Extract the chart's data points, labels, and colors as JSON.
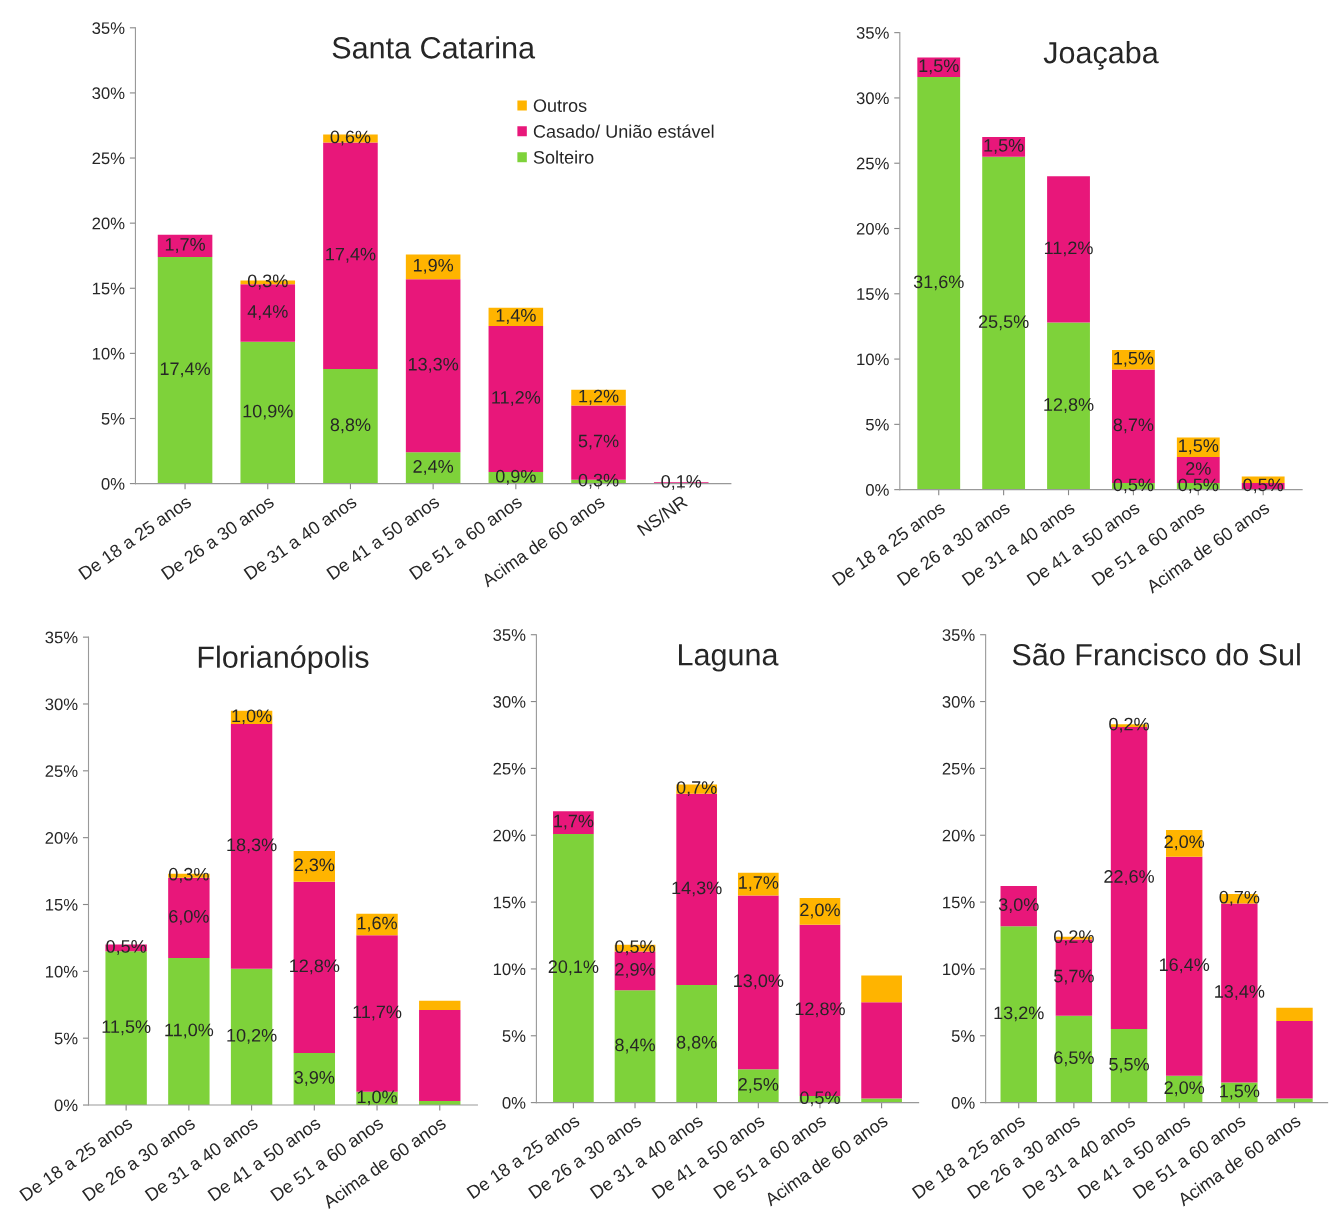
{
  "chart_data": [
    {
      "type": "bar",
      "stacked": true,
      "title": "Santa Catarina",
      "legend": "top right",
      "categories": [
        "De 18 a 25 anos",
        "De 26 a 30 anos",
        "De 31 a 40 anos",
        "De 41 a 50 anos",
        "De 51 a 60 anos",
        "Acima de 60 anos",
        "NS/NR"
      ],
      "ylim": [
        0,
        35
      ],
      "yticks": [
        {
          "value": 0,
          "label": "0%"
        },
        {
          "value": 5,
          "label": "5%"
        },
        {
          "value": 10,
          "label": "10%"
        },
        {
          "value": 15,
          "label": "15%"
        },
        {
          "value": 20,
          "label": "20%"
        },
        {
          "value": 25,
          "label": "25%"
        },
        {
          "value": 30,
          "label": "30%"
        },
        {
          "value": 35,
          "label": "35%"
        }
      ],
      "series": [
        {
          "name": "Solteiro",
          "color": "#7ed23a",
          "values": [
            17.4,
            10.9,
            8.8,
            2.4,
            0.9,
            0.3,
            null
          ],
          "value_labels": [
            "17,4%",
            "10,9%",
            "8,8%",
            "2,4%",
            "0,9%",
            "0,3%",
            null
          ]
        },
        {
          "name": "Casado/ União estável",
          "color": "#e8177a",
          "values": [
            1.7,
            4.4,
            17.4,
            13.3,
            11.2,
            5.7,
            0.1
          ],
          "value_labels": [
            "1,7%",
            "4,4%",
            "17,4%",
            "13,3%",
            "11,2%",
            "5,7%",
            "0,1%"
          ]
        },
        {
          "name": "Outros",
          "color": "#ffb400",
          "values": [
            null,
            0.3,
            0.6,
            1.9,
            1.4,
            1.2,
            null
          ],
          "value_labels": [
            null,
            "0,3%",
            "0,6%",
            "1,9%",
            "1,4%",
            "1,2%",
            null
          ]
        }
      ]
    },
    {
      "type": "bar",
      "stacked": true,
      "title": "Joaçaba",
      "categories": [
        "De 18 a 25 anos",
        "De 26 a 30 anos",
        "De 31 a 40 anos",
        "De 41 a 50 anos",
        "De 51 a 60 anos",
        "Acima de 60 anos"
      ],
      "ylim": [
        0,
        35
      ],
      "yticks": [
        {
          "value": 0,
          "label": "0%"
        },
        {
          "value": 5,
          "label": "5%"
        },
        {
          "value": 10,
          "label": "10%"
        },
        {
          "value": 15,
          "label": "15%"
        },
        {
          "value": 20,
          "label": "20%"
        },
        {
          "value": 25,
          "label": "25%"
        },
        {
          "value": 30,
          "label": "30%"
        },
        {
          "value": 35,
          "label": "35%"
        }
      ],
      "series": [
        {
          "color": "#7ed23a",
          "values": [
            31.6,
            25.5,
            12.8,
            0.5,
            0.5,
            null
          ],
          "value_labels": [
            "31,6%",
            "25,5%",
            "12,8%",
            "0,5%",
            "0,5%",
            null
          ]
        },
        {
          "color": "#e8177a",
          "values": [
            1.5,
            1.5,
            11.2,
            8.7,
            2,
            0.5
          ],
          "value_labels": [
            "1,5%",
            "1,5%",
            "11,2%",
            "8,7%",
            "2%",
            "0,5%"
          ]
        },
        {
          "color": "#ffb400",
          "values": [
            null,
            null,
            null,
            1.5,
            1.5,
            0.5
          ],
          "value_labels": [
            null,
            null,
            null,
            "1,5%",
            "1,5%",
            null
          ]
        }
      ]
    },
    {
      "type": "bar",
      "stacked": true,
      "title": "Florianópolis",
      "categories": [
        "De 18 a 25 anos",
        "De 26 a 30 anos",
        "De 31 a 40 anos",
        "De 41 a 50 anos",
        "De 51 a 60 anos",
        "Acima de 60 anos"
      ],
      "ylim": [
        0,
        35
      ],
      "yticks": [
        {
          "value": 0,
          "label": "0%"
        },
        {
          "value": 5,
          "label": "5%"
        },
        {
          "value": 10,
          "label": "10%"
        },
        {
          "value": 15,
          "label": "15%"
        },
        {
          "value": 20,
          "label": "20%"
        },
        {
          "value": 25,
          "label": "25%"
        },
        {
          "value": 30,
          "label": "30%"
        },
        {
          "value": 35,
          "label": "35%"
        }
      ],
      "series": [
        {
          "color": "#7ed23a",
          "values": [
            11.5,
            11.0,
            10.2,
            3.9,
            1.0,
            0.3
          ],
          "value_labels": [
            "11,5%",
            "11,0%",
            "10,2%",
            "3,9%",
            "1,0%",
            null
          ]
        },
        {
          "color": "#e8177a",
          "values": [
            0.5,
            6.0,
            18.3,
            12.8,
            11.7,
            6.8
          ],
          "value_labels": [
            "0,5%",
            "6,0%",
            "18,3%",
            "12,8%",
            "11,7%",
            null
          ]
        },
        {
          "color": "#ffb400",
          "values": [
            null,
            0.3,
            1.0,
            2.3,
            1.6,
            0.7
          ],
          "value_labels": [
            null,
            "0,3%",
            "1,0%",
            "2,3%",
            "1,6%",
            null
          ]
        }
      ]
    },
    {
      "type": "bar",
      "stacked": true,
      "title": "Laguna",
      "categories": [
        "De 18 a 25 anos",
        "De 26 a 30 anos",
        "De 31 a 40 anos",
        "De 41 a 50 anos",
        "De 51 a 60 anos",
        "Acima de 60 anos"
      ],
      "ylim": [
        0,
        35
      ],
      "yticks": [
        {
          "value": 0,
          "label": "0%"
        },
        {
          "value": 5,
          "label": "5%"
        },
        {
          "value": 10,
          "label": "10%"
        },
        {
          "value": 15,
          "label": "15%"
        },
        {
          "value": 20,
          "label": "20%"
        },
        {
          "value": 25,
          "label": "25%"
        },
        {
          "value": 30,
          "label": "30%"
        },
        {
          "value": 35,
          "label": "35%"
        }
      ],
      "series": [
        {
          "color": "#7ed23a",
          "values": [
            20.1,
            8.4,
            8.8,
            2.5,
            0.5,
            0.3
          ],
          "value_labels": [
            "20,1%",
            "8,4%",
            "8,8%",
            "2,5%",
            "0,5%",
            null
          ]
        },
        {
          "color": "#e8177a",
          "values": [
            1.7,
            2.9,
            14.3,
            13.0,
            12.8,
            7.2
          ],
          "value_labels": [
            "1,7%",
            "2,9%",
            "14,3%",
            "13,0%",
            "12,8%",
            null
          ]
        },
        {
          "color": "#ffb400",
          "values": [
            null,
            0.5,
            0.7,
            1.7,
            2.0,
            2.0
          ],
          "value_labels": [
            null,
            "0,5%",
            "0,7%",
            "1,7%",
            "2,0%",
            null
          ]
        }
      ]
    },
    {
      "type": "bar",
      "stacked": true,
      "title": "São Francisco do Sul",
      "categories": [
        "De 18 a 25 anos",
        "De 26 a 30 anos",
        "De 31 a 40 anos",
        "De 41 a 50 anos",
        "De 51 a 60 anos",
        "Acima de 60 anos"
      ],
      "ylim": [
        0,
        35
      ],
      "yticks": [
        {
          "value": 0,
          "label": "0%"
        },
        {
          "value": 5,
          "label": "5%"
        },
        {
          "value": 10,
          "label": "10%"
        },
        {
          "value": 15,
          "label": "15%"
        },
        {
          "value": 20,
          "label": "20%"
        },
        {
          "value": 25,
          "label": "25%"
        },
        {
          "value": 30,
          "label": "30%"
        },
        {
          "value": 35,
          "label": "35%"
        }
      ],
      "series": [
        {
          "color": "#7ed23a",
          "values": [
            13.2,
            6.5,
            5.5,
            2.0,
            1.5,
            0.3
          ],
          "value_labels": [
            "13,2%",
            "6,5%",
            "5,5%",
            "2,0%",
            "1,5%",
            null
          ]
        },
        {
          "color": "#e8177a",
          "values": [
            3.0,
            5.7,
            22.6,
            16.4,
            13.4,
            5.8
          ],
          "value_labels": [
            "3,0%",
            "5,7%",
            "22,6%",
            "16,4%",
            "13,4%",
            null
          ]
        },
        {
          "color": "#ffb400",
          "values": [
            null,
            0.2,
            0.2,
            2.0,
            0.7,
            1.0
          ],
          "value_labels": [
            null,
            "0,2%",
            "0,2%",
            "2,0%",
            "0,7%",
            null
          ]
        }
      ]
    }
  ]
}
